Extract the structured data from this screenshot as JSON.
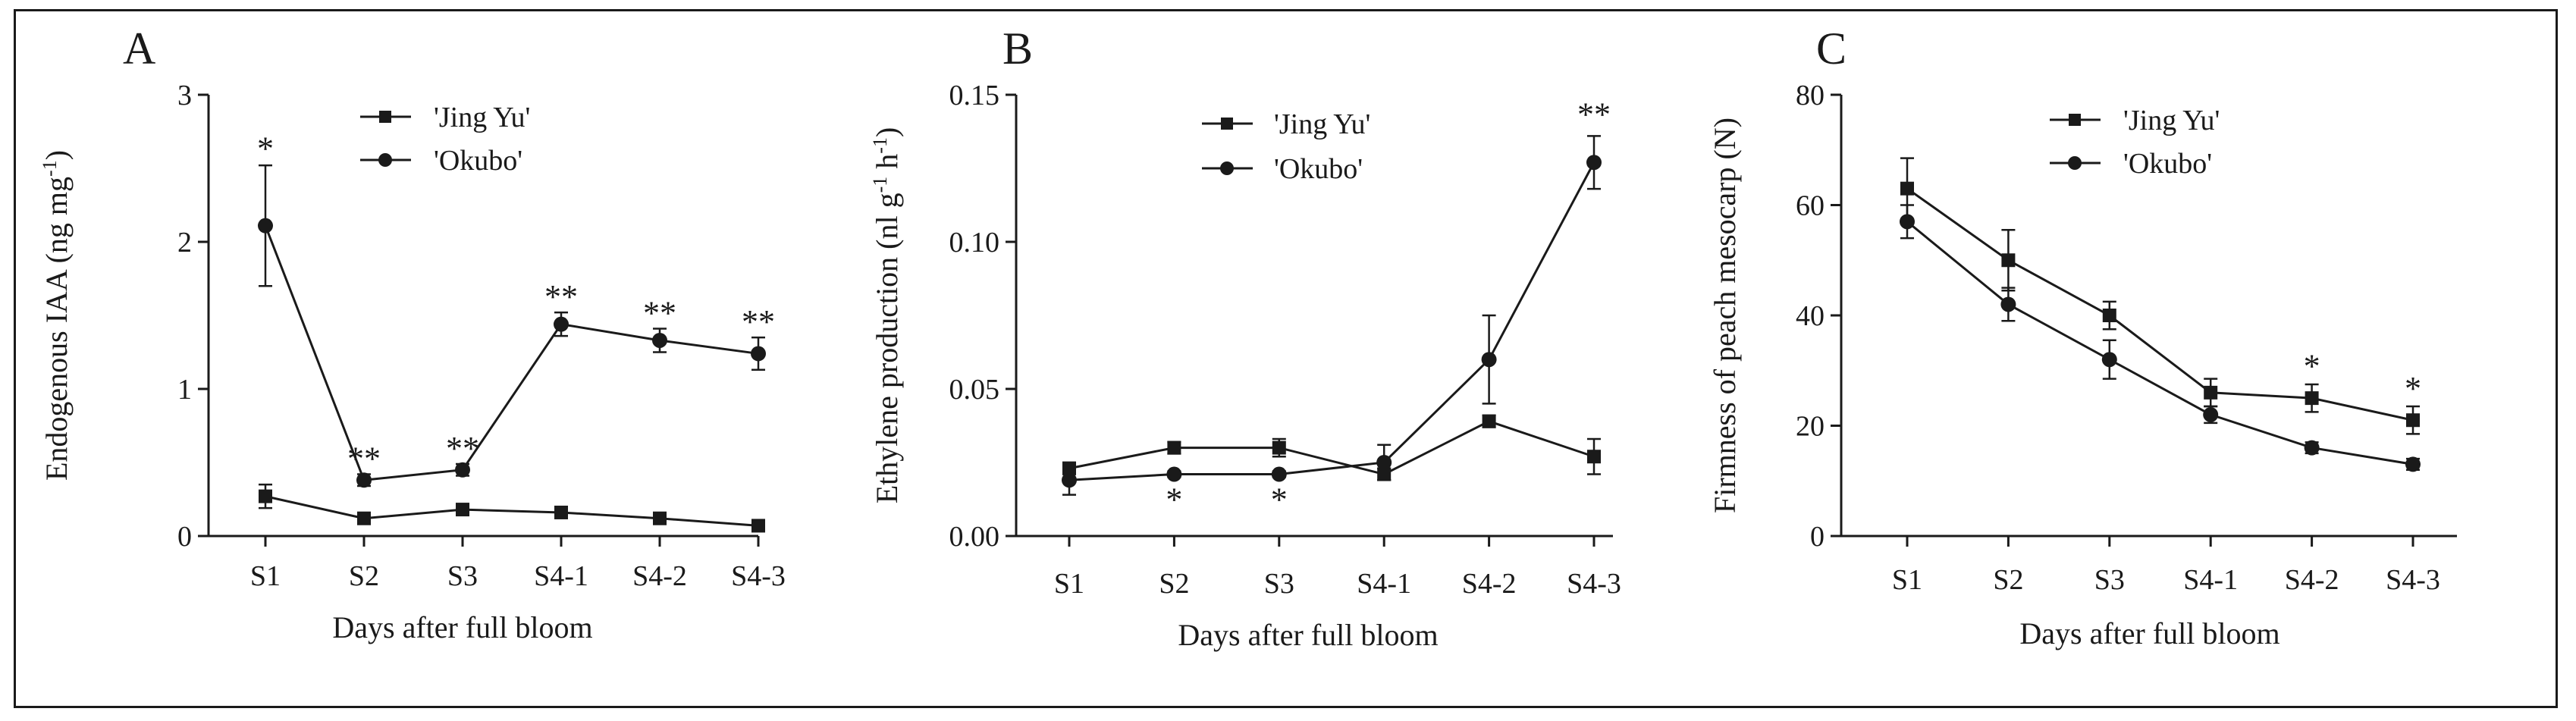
{
  "colors": {
    "ink": "#1a1a1a",
    "background": "#ffffff"
  },
  "chart_data": [
    {
      "type": "line",
      "panel_label": "A",
      "title": "",
      "xlabel": "Days after full bloom",
      "ylabel": "Endogenous IAA (ng mg",
      "ylabel_sup": "-1",
      "ylabel_close": ")",
      "categories": [
        "S1",
        "S2",
        "S3",
        "S4-1",
        "S4-2",
        "S4-3"
      ],
      "ylim": [
        0,
        3
      ],
      "yticks": [
        0,
        1,
        2,
        3
      ],
      "ytick_labels": [
        "0",
        "1",
        "2",
        "3"
      ],
      "legend_position": "top-right",
      "series": [
        {
          "name": "'Jing Yu'",
          "marker": "square",
          "values": [
            0.27,
            0.12,
            0.18,
            0.16,
            0.12,
            0.07
          ],
          "errors": [
            0.08,
            0.02,
            0.02,
            0.02,
            0.02,
            0.02
          ]
        },
        {
          "name": "'Okubo'",
          "marker": "circle",
          "values": [
            2.11,
            0.38,
            0.45,
            1.44,
            1.33,
            1.24
          ],
          "errors": [
            0.41,
            0.04,
            0.04,
            0.08,
            0.08,
            0.11
          ]
        }
      ],
      "annotations": [
        {
          "category": "S1",
          "text": "*",
          "above": 2.55
        },
        {
          "category": "S2",
          "text": "**",
          "above": 0.44
        },
        {
          "category": "S3",
          "text": "**",
          "above": 0.51
        },
        {
          "category": "S4-1",
          "text": "**",
          "above": 1.54
        },
        {
          "category": "S4-2",
          "text": "**",
          "above": 1.43
        },
        {
          "category": "S4-3",
          "text": "**",
          "above": 1.37
        }
      ]
    },
    {
      "type": "line",
      "panel_label": "B",
      "title": "",
      "xlabel": "Days after full bloom",
      "ylabel": "Ethylene production (nl g",
      "ylabel_sup": "-1",
      "ylabel_mid": " h",
      "ylabel_sup2": "-1",
      "ylabel_close": ")",
      "categories": [
        "S1",
        "S2",
        "S3",
        "S4-1",
        "S4-2",
        "S4-3"
      ],
      "ylim": [
        0,
        0.15
      ],
      "yticks": [
        0,
        0.05,
        0.1,
        0.15
      ],
      "ytick_labels": [
        "0.00",
        "0.05",
        "0.10",
        "0.15"
      ],
      "legend_position": "top-right",
      "series": [
        {
          "name": "'Jing Yu'",
          "marker": "square",
          "values": [
            0.023,
            0.03,
            0.03,
            0.021,
            0.039,
            0.027
          ],
          "errors": [
            0.002,
            0.002,
            0.003,
            0.002,
            0.002,
            0.006
          ]
        },
        {
          "name": "'Okubo'",
          "marker": "circle",
          "values": [
            0.019,
            0.021,
            0.021,
            0.025,
            0.06,
            0.127
          ],
          "errors": [
            0.005,
            0.001,
            0.001,
            0.006,
            0.015,
            0.009
          ]
        }
      ],
      "annotations": [
        {
          "category": "S2",
          "text": "*",
          "below": 0.019
        },
        {
          "category": "S3",
          "text": "*",
          "below": 0.019
        },
        {
          "category": "S4-3",
          "text": "**",
          "above": 0.139
        }
      ]
    },
    {
      "type": "line",
      "panel_label": "C",
      "title": "",
      "xlabel": "Days after full bloom",
      "ylabel": "Firmness of peach mesocarp (N)",
      "categories": [
        "S1",
        "S2",
        "S3",
        "S4-1",
        "S4-2",
        "S4-3"
      ],
      "ylim": [
        0,
        80
      ],
      "yticks": [
        0,
        20,
        40,
        60,
        80
      ],
      "ytick_labels": [
        "0",
        "20",
        "40",
        "60",
        "80"
      ],
      "legend_position": "top-right",
      "series": [
        {
          "name": "'Jing Yu'",
          "marker": "square",
          "values": [
            63,
            50,
            40,
            26,
            25,
            21
          ],
          "errors": [
            5.5,
            5.5,
            2.5,
            2.5,
            2.5,
            2.5
          ]
        },
        {
          "name": "'Okubo'",
          "marker": "circle",
          "values": [
            57,
            42,
            32,
            22,
            16,
            13
          ],
          "errors": [
            3.0,
            3.0,
            3.5,
            1.5,
            1.0,
            1.0
          ]
        }
      ],
      "annotations": [
        {
          "category": "S4-2",
          "text": "*",
          "above": 28.5
        },
        {
          "category": "S4-3",
          "text": "*",
          "above": 24.5
        }
      ]
    }
  ]
}
